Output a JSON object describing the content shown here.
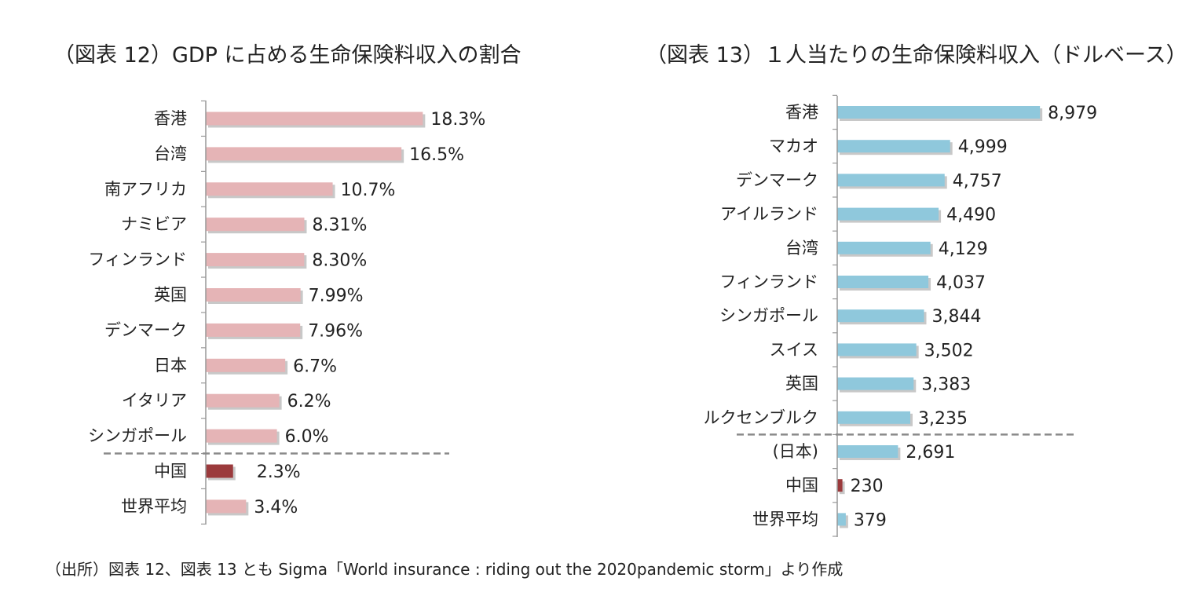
{
  "colors": {
    "normal_bar": "#e5b4b6",
    "china_bar": "#9b3a3c",
    "right_bar": "#8fc8dc",
    "shadow": "#c8c8c8",
    "axis": "#999999",
    "divider": "#8a8a8a"
  },
  "source": "（出所）図表 12、図表 13 とも Sigma「World insurance : riding out the 2020pandemic storm」より作成",
  "chart_data": [
    {
      "type": "bar",
      "orientation": "horizontal",
      "title": "（図表 12）GDP に占める生命保険料収入の割合",
      "categories": [
        "香港",
        "台湾",
        "南アフリカ",
        "ナミビア",
        "フィンランド",
        "英国",
        "デンマーク",
        "日本",
        "イタリア",
        "シンガポール",
        "中国",
        "世界平均"
      ],
      "values": [
        18.3,
        16.5,
        10.7,
        8.31,
        8.3,
        7.99,
        7.96,
        6.7,
        6.2,
        6.0,
        2.3,
        3.4
      ],
      "labels": [
        "18.3%",
        "16.5%",
        "10.7%",
        "8.31%",
        "8.30%",
        "7.99%",
        "7.96%",
        "6.7%",
        "6.2%",
        "6.0%",
        "2.3%",
        "3.4%"
      ],
      "highlight": [
        "中国"
      ],
      "divider_after": "シンガポール",
      "xlim": [
        0,
        20
      ],
      "grid": false
    },
    {
      "type": "bar",
      "orientation": "horizontal",
      "title": "（図表 13）１人当たりの生命保険料収入（ドルベース）",
      "categories": [
        "香港",
        "マカオ",
        "デンマーク",
        "アイルランド",
        "台湾",
        "フィンランド",
        "シンガポール",
        "スイス",
        "英国",
        "ルクセンブルク",
        "(日本)",
        "中国",
        "世界平均"
      ],
      "values": [
        8979,
        4999,
        4757,
        4490,
        4129,
        4037,
        3844,
        3502,
        3383,
        3235,
        2691,
        230,
        379
      ],
      "labels": [
        "8,979",
        "4,999",
        "4,757",
        "4,490",
        "4,129",
        "4,037",
        "3,844",
        "3,502",
        "3,383",
        "3,235",
        "2,691",
        "230",
        "379"
      ],
      "highlight": [
        "中国"
      ],
      "divider_after": "ルクセンブルク",
      "xlim": [
        0,
        10000
      ],
      "grid": false
    }
  ]
}
